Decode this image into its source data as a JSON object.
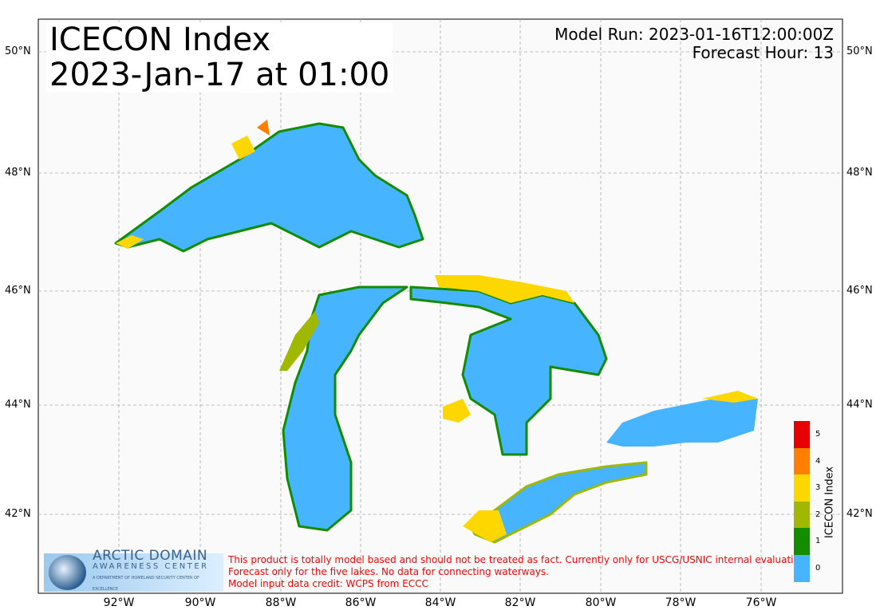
{
  "title": {
    "line1": "ICECON Index",
    "line2": "2023-Jan-17 at 01:00"
  },
  "model_run": "Model Run: 2023-01-16T12:00:00Z",
  "forecast_hour": "Forecast Hour: 13",
  "lat_labels": [
    "50°N",
    "48°N",
    "46°N",
    "44°N",
    "42°N"
  ],
  "lon_labels": [
    "92°W",
    "90°W",
    "88°W",
    "86°W",
    "84°W",
    "82°W",
    "80°W",
    "78°W",
    "76°W"
  ],
  "logo": {
    "line1": "ARCTIC DOMAIN",
    "line2": "AWARENESS CENTER",
    "line3": "A DEPARTMENT OF HOMELAND SECURITY CENTER OF EXCELLENCE"
  },
  "disclaimer": [
    "This product is totally model based and should not be treated as fact. Currently only for USCG/USNIC internal evaluation.",
    "Forecast only for the five lakes. No data for connecting waterways.",
    "Model input data credit: WCPS from ECCC"
  ],
  "colorbar": {
    "label": "ICECON Index",
    "ticks": [
      "5",
      "4",
      "3",
      "2",
      "1",
      "0"
    ],
    "colors": [
      "#e80000",
      "#ff8000",
      "#ffd700",
      "#a0b800",
      "#148c00",
      "#46b4ff"
    ]
  },
  "colors": {
    "water_index0": "#46b4ff",
    "land": "#fafafa",
    "grid": "#aaaaaa"
  }
}
